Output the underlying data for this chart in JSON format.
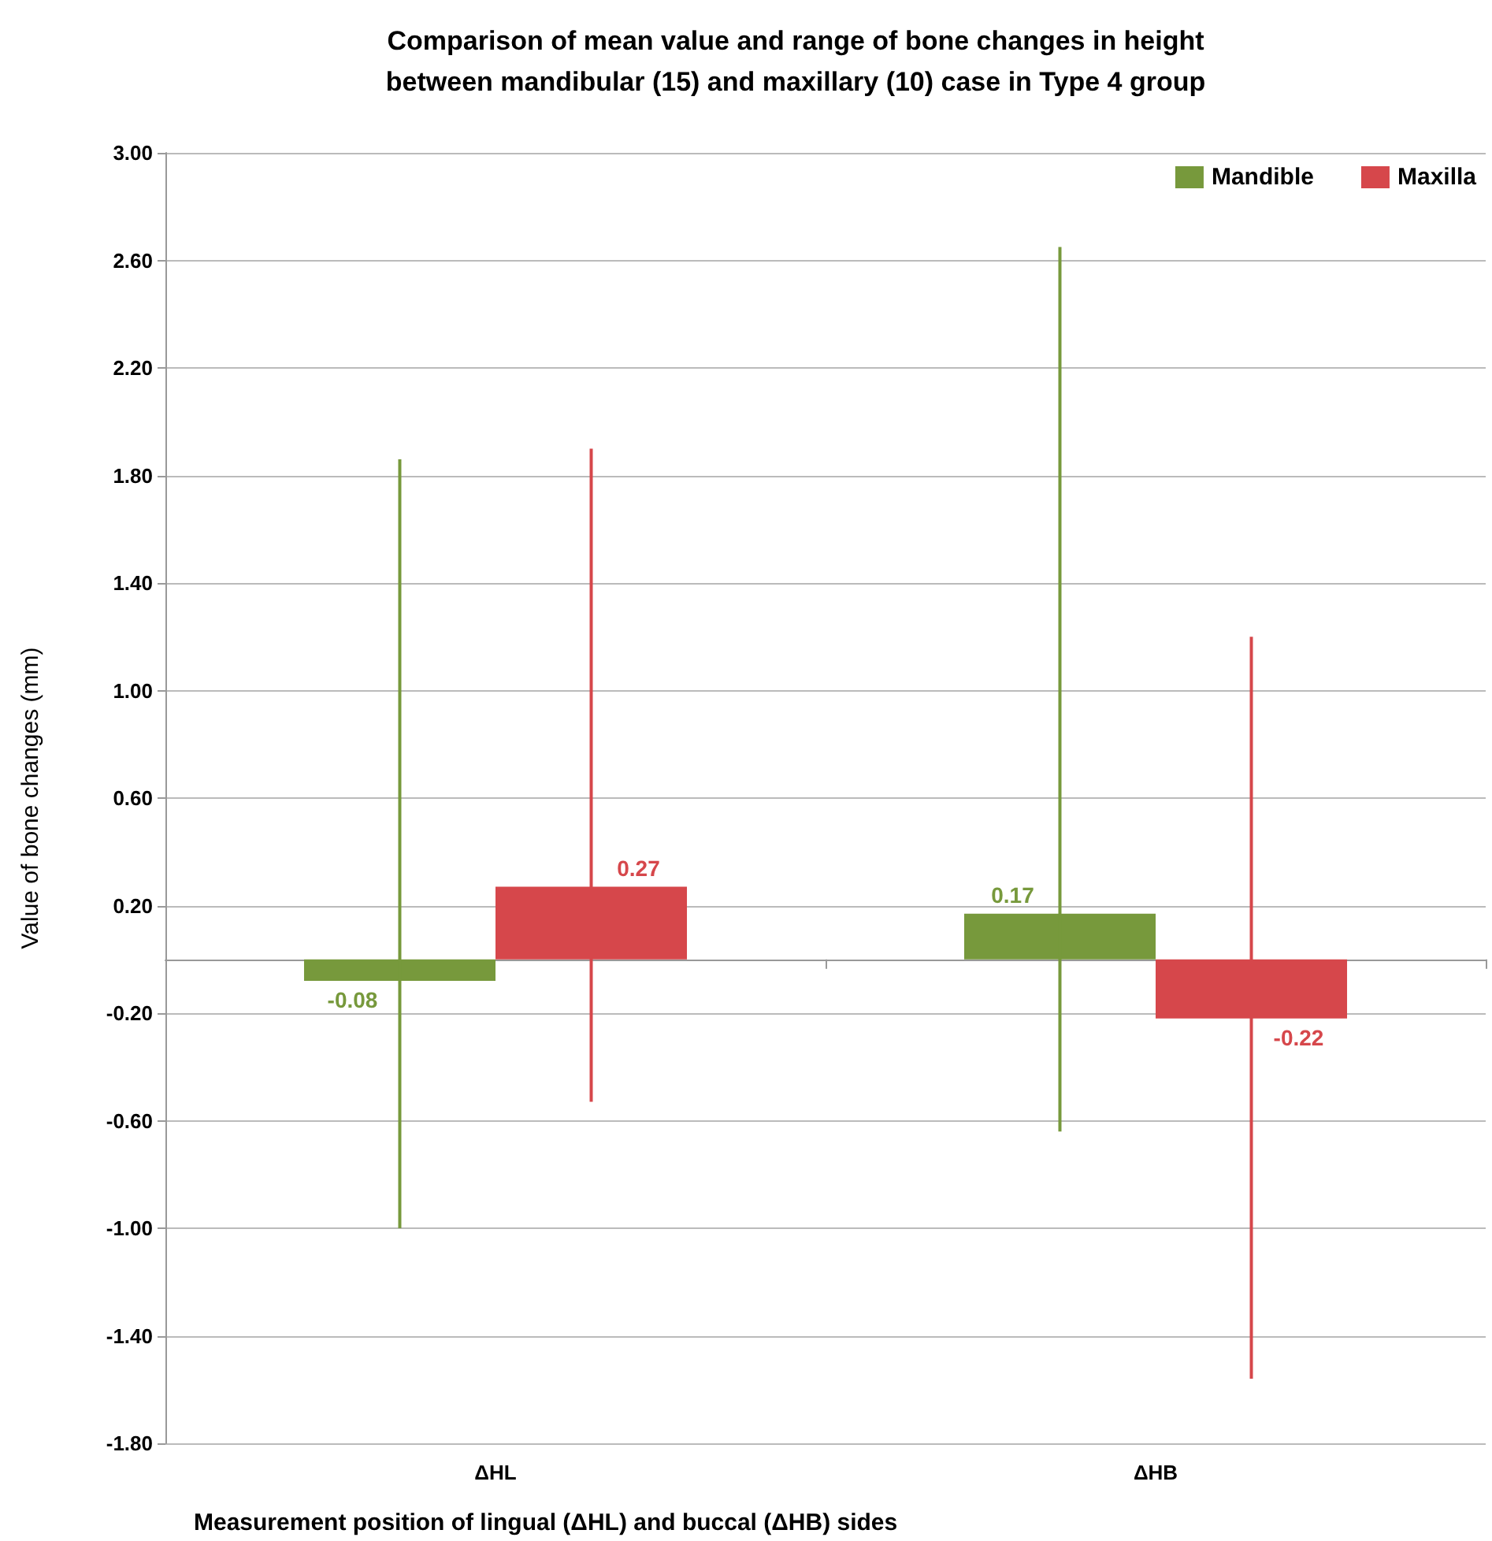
{
  "chart_data": {
    "type": "bar",
    "title": "Comparison of mean value and range of bone changes in height\nbetween mandibular (15) and maxillary (10) case in Type 4 group",
    "xlabel": "Measurement position of lingual (ΔHL) and buccal (ΔHB) sides",
    "ylabel": "Value of bone changes (mm)",
    "categories": [
      "ΔHL",
      "ΔHB"
    ],
    "series": [
      {
        "name": "Mandible",
        "color": "#77993c",
        "values": [
          -0.08,
          0.17
        ],
        "errors": [
          [
            -1.0,
            1.86
          ],
          [
            -0.64,
            2.65
          ]
        ]
      },
      {
        "name": "Maxilla",
        "color": "#d6474b",
        "values": [
          0.27,
          -0.22
        ],
        "errors": [
          [
            -0.53,
            1.9
          ],
          [
            -1.56,
            1.2
          ]
        ]
      }
    ],
    "ylim": [
      -1.8,
      3.0
    ],
    "yticks": [
      {
        "value": -1.8,
        "label": "-1.80"
      },
      {
        "value": -1.4,
        "label": "-1.40"
      },
      {
        "value": -1.0,
        "label": "-1.00"
      },
      {
        "value": -0.6,
        "label": "-0.60"
      },
      {
        "value": -0.2,
        "label": "-0.20"
      },
      {
        "value": 0.2,
        "label": "0.20"
      },
      {
        "value": 0.6,
        "label": "0.60"
      },
      {
        "value": 1.0,
        "label": "1.00"
      },
      {
        "value": 1.4,
        "label": "1.40"
      },
      {
        "value": 1.8,
        "label": "1.80"
      },
      {
        "value": 2.2,
        "label": "2.20"
      },
      {
        "value": 2.6,
        "label": "2.60"
      },
      {
        "value": 3.0,
        "label": "3.00"
      }
    ],
    "grid": "y",
    "legend": "top right",
    "data_labels": true
  }
}
